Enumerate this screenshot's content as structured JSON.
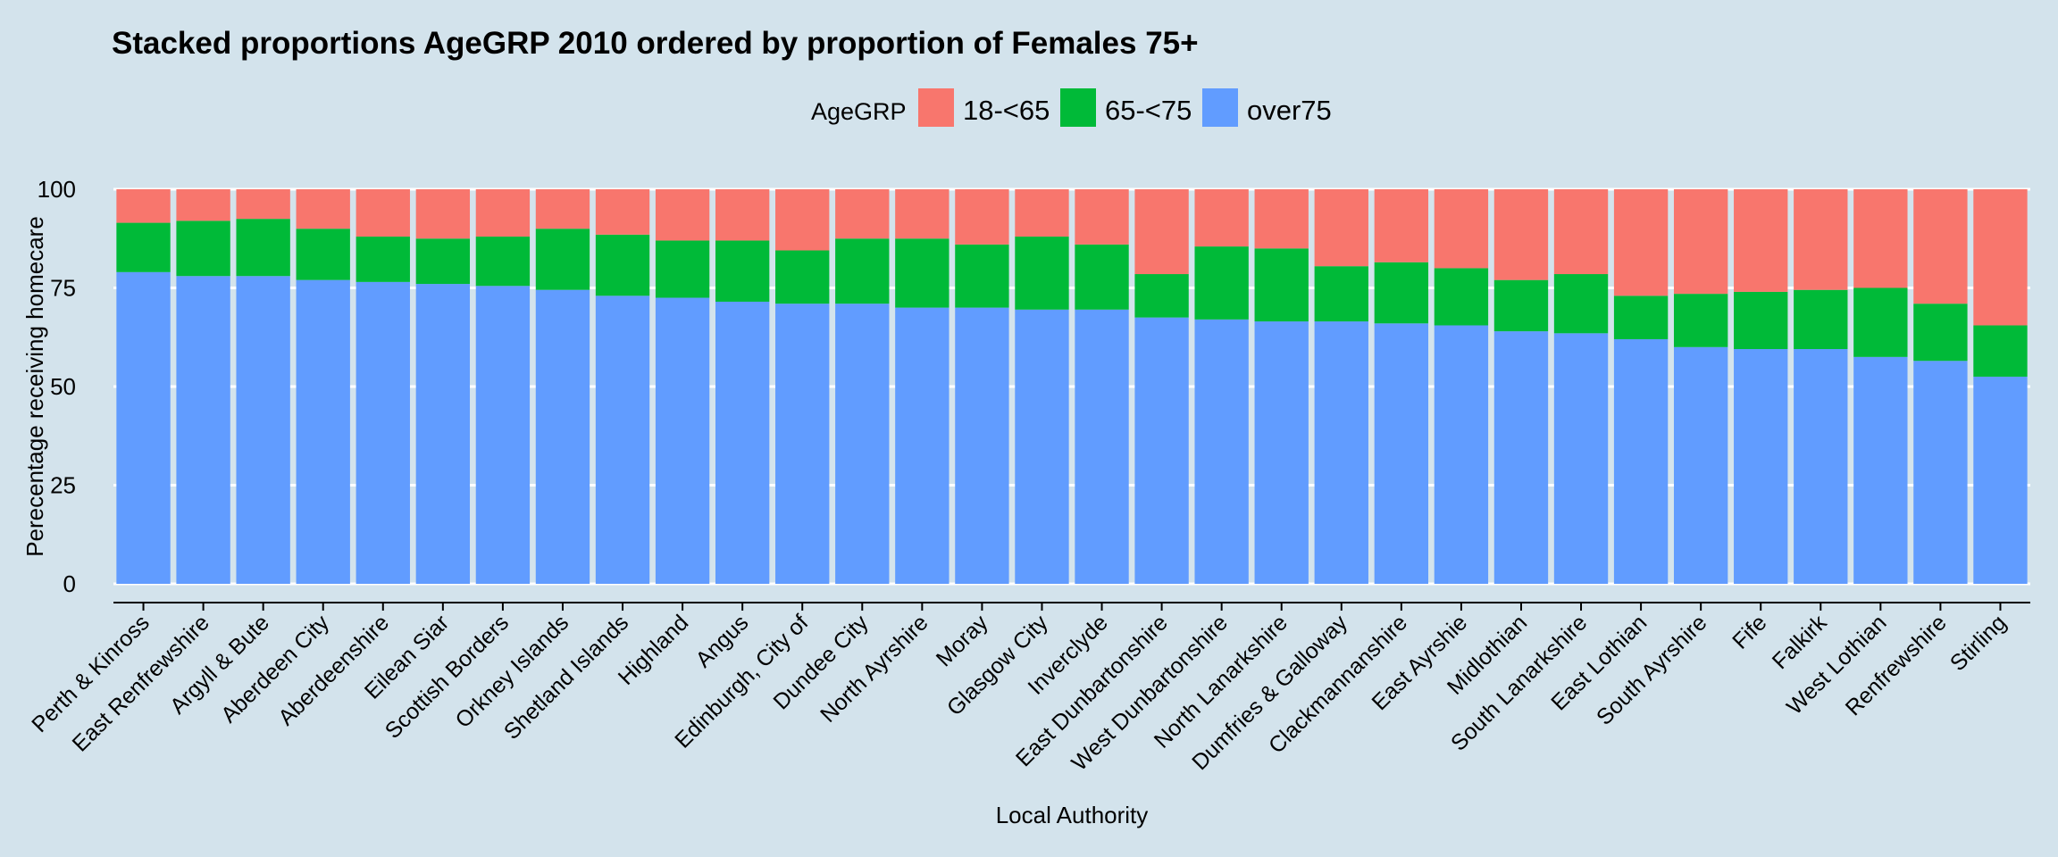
{
  "chart_data": {
    "type": "bar",
    "stacked": true,
    "title": "Stacked proportions AgeGRP 2010 ordered by proportion of Females 75+",
    "xlabel": "Local Authority",
    "ylabel": "Perecentage receiving homecare",
    "ylim": [
      0,
      100
    ],
    "yticks": [
      "0",
      "25",
      "50",
      "75",
      "100"
    ],
    "grid": true,
    "legend": {
      "title": "AgeGRP",
      "position": "top",
      "entries": [
        "18-<65",
        "65-<75",
        "over75"
      ]
    },
    "colors": {
      "18-<65": "#f8766d",
      "65-<75": "#00ba38",
      "over75": "#619cff",
      "background": "#d3e3ec",
      "grid": "#ffffff"
    },
    "categories": [
      "Perth & Kinross",
      "East Renfrewshire",
      "Argyll & Bute",
      "Aberdeen City",
      "Aberdeenshire",
      "Eilean Siar",
      "Scottish Borders",
      "Orkney Islands",
      "Shetland Islands",
      "Highland",
      "Angus",
      "Edinburgh, City of",
      "Dundee City",
      "North Ayrshire",
      "Moray",
      "Glasgow City",
      "Inverclyde",
      "East Dunbartonshire",
      "West Dunbartonshire",
      "North Lanarkshire",
      "Dumfries & Galloway",
      "Clackmannanshire",
      "East Ayrshie",
      "Midlothian",
      "South Lanarkshire",
      "East Lothian",
      "South Ayrshire",
      "Fife",
      "Falkirk",
      "West Lothian",
      "Renfrewshire",
      "Stirling"
    ],
    "series": [
      {
        "name": "over75",
        "values": [
          79,
          78,
          78,
          77,
          76.5,
          76,
          75.5,
          74.5,
          73,
          72.5,
          71.5,
          71,
          71,
          70,
          70,
          69.5,
          69.5,
          67.5,
          67,
          66.5,
          66.5,
          66,
          65.5,
          64,
          63.5,
          62,
          60,
          59.5,
          59.5,
          57.5,
          56.5,
          52.5
        ]
      },
      {
        "name": "65-<75",
        "values": [
          12.5,
          14,
          14.5,
          13,
          11.5,
          11.5,
          12.5,
          15.5,
          15.5,
          14.5,
          15.5,
          13.5,
          16.5,
          17.5,
          16,
          18.5,
          16.5,
          11,
          18.5,
          18.5,
          14,
          15.5,
          14.5,
          13,
          15,
          11,
          13.5,
          14.5,
          15,
          17.5,
          14.5,
          13
        ]
      },
      {
        "name": "18-<65",
        "values": [
          8.5,
          8,
          7.5,
          10,
          12,
          12.5,
          12,
          10,
          11.5,
          13,
          13,
          15.5,
          12.5,
          12.5,
          14,
          12,
          14,
          21.5,
          14.5,
          15,
          19.5,
          18.5,
          20,
          23,
          21.5,
          27,
          26.5,
          26,
          25.5,
          25,
          29,
          34.5
        ]
      }
    ]
  }
}
